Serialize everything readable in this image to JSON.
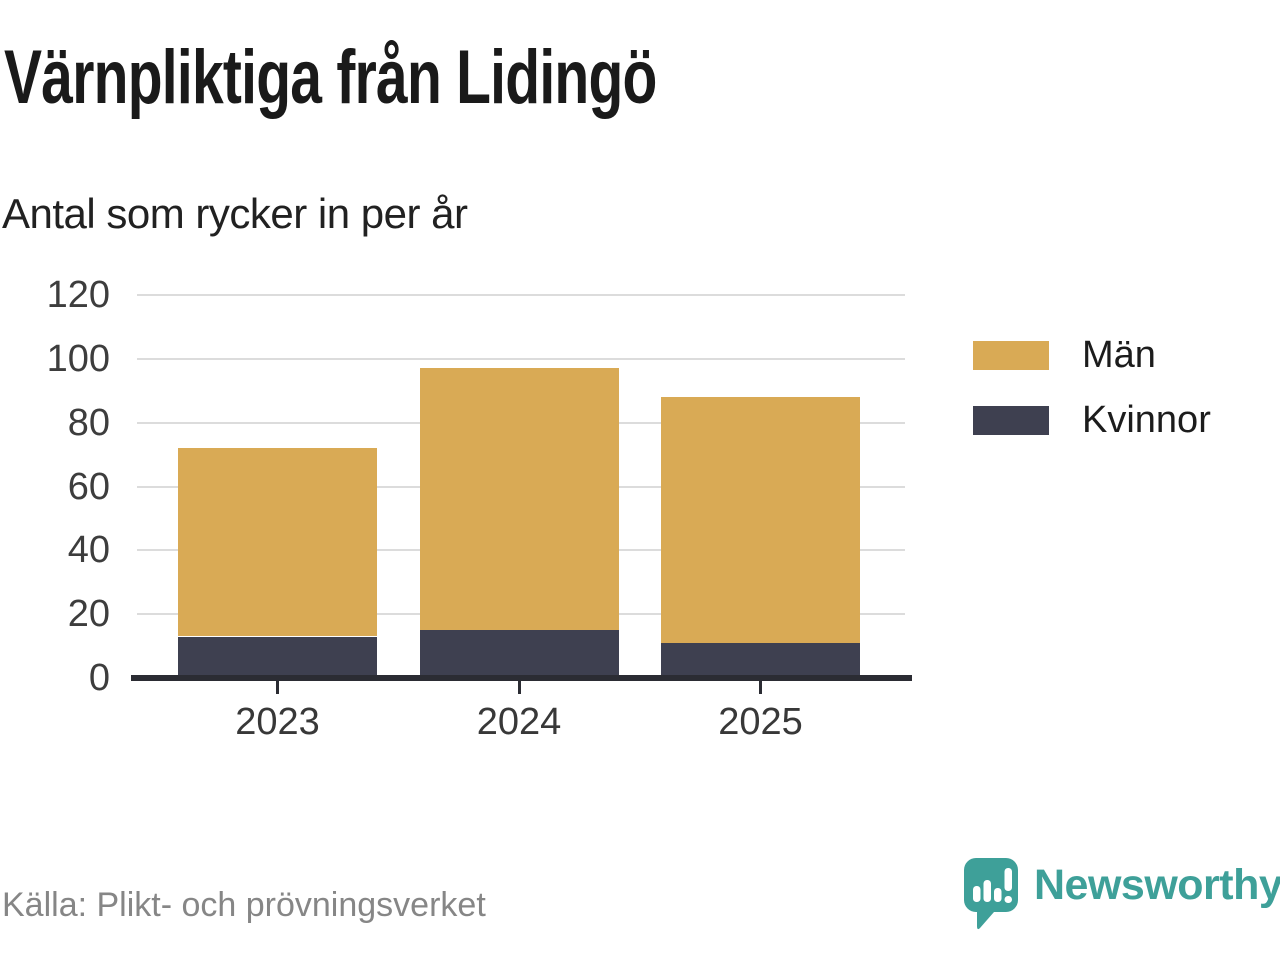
{
  "chart_data": {
    "type": "bar",
    "stacked": true,
    "title": "Värnpliktiga från Lidingö",
    "subtitle": "Antal som rycker in per år",
    "categories": [
      "2023",
      "2024",
      "2025"
    ],
    "series": [
      {
        "name": "Män",
        "color": "#d9aa55",
        "values": [
          59,
          82,
          77
        ]
      },
      {
        "name": "Kvinnor",
        "color": "#3e4050",
        "values": [
          13,
          15,
          11
        ]
      }
    ],
    "stack_bottom_to_top": [
      "Kvinnor",
      "Män"
    ],
    "totals": [
      72,
      97,
      88
    ],
    "xlabel": "",
    "ylabel": "",
    "ylim": [
      0,
      120
    ],
    "yticks": [
      0,
      20,
      40,
      60,
      80,
      100,
      120
    ],
    "grid": true,
    "legend_position": "right",
    "gridline_color": "#dcdcdc",
    "axis_color": "#2b2c33"
  },
  "source": {
    "text": "Källa: Plikt- och prövningsverket"
  },
  "branding": {
    "name": "Newsworthy",
    "color": "#3ea099",
    "icon": "newsworthy-logo-icon"
  }
}
